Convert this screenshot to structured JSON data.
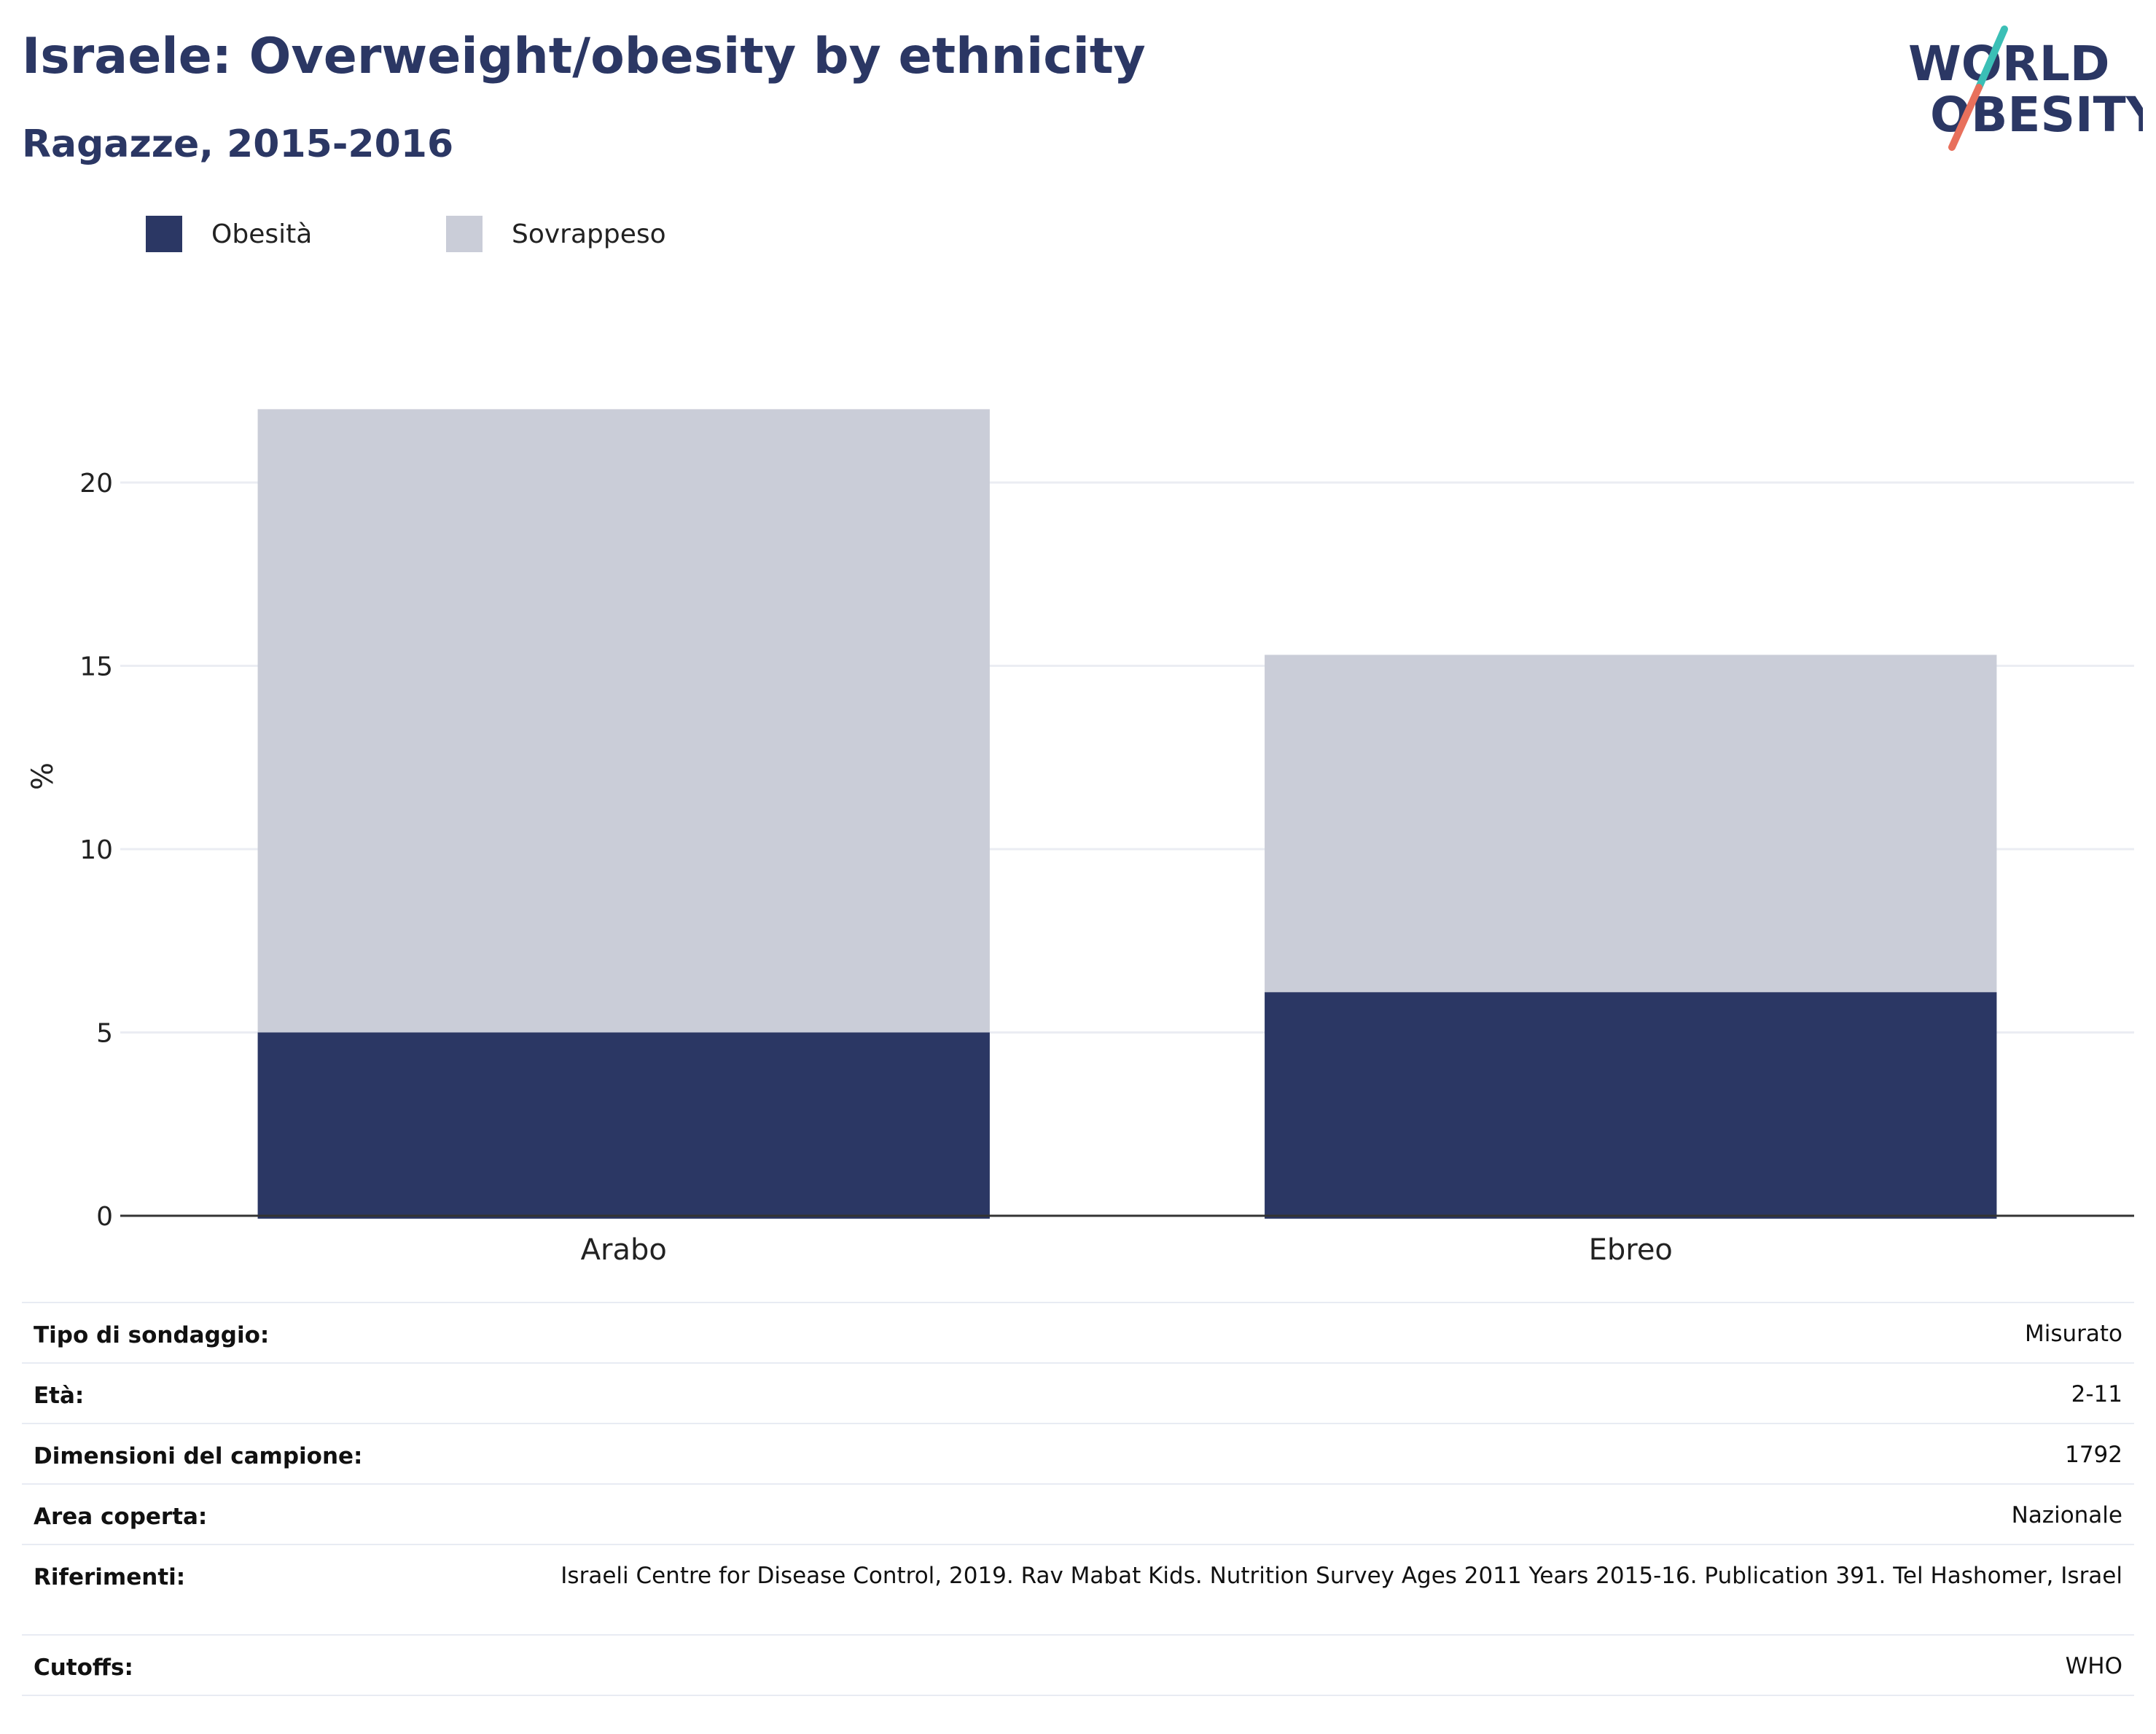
{
  "header": {
    "title": "Israele: Overweight/obesity by ethnicity",
    "subtitle": "Ragazze, 2015-2016"
  },
  "logo": {
    "line1": "WORLD",
    "line2": "OBESITY",
    "colors": {
      "text": "#2b3764",
      "slash_top": "#3bbfb6",
      "slash_bottom": "#e8705c"
    }
  },
  "legend": [
    {
      "label": "Obesità",
      "color": "#2b3764"
    },
    {
      "label": "Sovrappeso",
      "color": "#cacdd8"
    }
  ],
  "chart_data": {
    "type": "bar",
    "stacked": true,
    "categories": [
      "Arabo",
      "Ebreo"
    ],
    "series": [
      {
        "name": "Obesità",
        "values": [
          5.0,
          6.1
        ],
        "color": "#2b3764"
      },
      {
        "name": "Sovrappeso",
        "values": [
          17.0,
          9.2
        ],
        "color": "#cacdd8"
      }
    ],
    "ylabel": "%",
    "xlabel": "",
    "ylim": [
      0,
      22
    ],
    "yticks": [
      0,
      5,
      10,
      15,
      20
    ],
    "grid": true,
    "legend_position": "top-left"
  },
  "info": [
    {
      "label": "Tipo di sondaggio:",
      "value": "Misurato"
    },
    {
      "label": "Età:",
      "value": "2-11"
    },
    {
      "label": "Dimensioni del campione:",
      "value": "1792"
    },
    {
      "label": "Area coperta:",
      "value": "Nazionale"
    },
    {
      "label": "Riferimenti:",
      "value": "Israeli Centre for Disease Control, 2019. Rav Mabat Kids. Nutrition Survey Ages 2011 Years 2015-16. Publication 391. Tel Hashomer, Israel"
    },
    {
      "label": "Cutoffs:",
      "value": "WHO"
    }
  ]
}
